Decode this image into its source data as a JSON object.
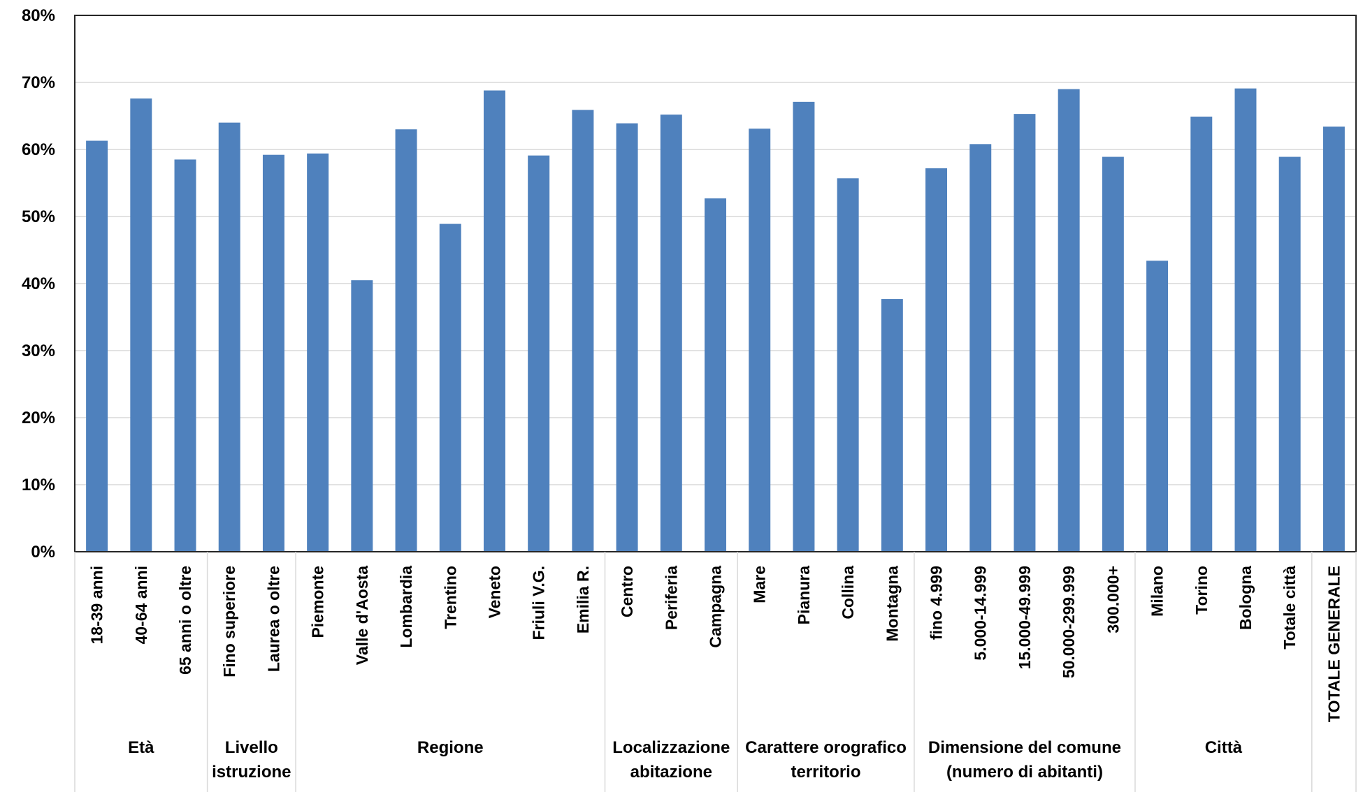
{
  "chart_data": {
    "type": "bar",
    "title": "",
    "xlabel": "",
    "ylabel": "",
    "ylim": [
      0,
      0.8
    ],
    "y_ticks": [
      "0%",
      "10%",
      "20%",
      "30%",
      "40%",
      "50%",
      "60%",
      "70%",
      "80%"
    ],
    "grid": true,
    "legend": "none",
    "bar_color": "#4f81bd",
    "categories": [
      "18-39 anni",
      "40-64 anni",
      "65 anni o oltre",
      "Fino superiore",
      "Laurea o oltre",
      "Piemonte",
      "Valle d'Aosta",
      "Lombardia",
      "Trentino",
      "Veneto",
      "Friuli V.G.",
      "Emilia R.",
      "Centro",
      "Periferia",
      "Campagna",
      "Mare",
      "Pianura",
      "Collina",
      "Montagna",
      "fino 4.999",
      "5.000-14.999",
      "15.000-49.999",
      "50.000-299.999",
      "300.000+",
      "Milano",
      "Torino",
      "Bologna",
      "Totale città",
      "TOTALE GENERALE"
    ],
    "values": [
      0.613,
      0.676,
      0.585,
      0.64,
      0.592,
      0.594,
      0.405,
      0.63,
      0.489,
      0.688,
      0.591,
      0.659,
      0.639,
      0.652,
      0.527,
      0.631,
      0.671,
      0.557,
      0.377,
      0.572,
      0.608,
      0.653,
      0.69,
      0.589,
      0.434,
      0.649,
      0.691,
      0.589,
      0.634
    ],
    "groups": [
      {
        "lines": [
          "Età"
        ],
        "start": 0,
        "count": 3
      },
      {
        "lines": [
          "Livello",
          "istruzione"
        ],
        "start": 3,
        "count": 2
      },
      {
        "lines": [
          "Regione"
        ],
        "start": 5,
        "count": 7
      },
      {
        "lines": [
          "Localizzazione",
          "abitazione"
        ],
        "start": 12,
        "count": 3
      },
      {
        "lines": [
          "Carattere orografico",
          "territorio"
        ],
        "start": 15,
        "count": 4
      },
      {
        "lines": [
          "Dimensione del comune",
          "(numero di abitanti)"
        ],
        "start": 19,
        "count": 5
      },
      {
        "lines": [
          "Città"
        ],
        "start": 24,
        "count": 4
      },
      {
        "lines": [],
        "start": 28,
        "count": 1
      }
    ]
  }
}
